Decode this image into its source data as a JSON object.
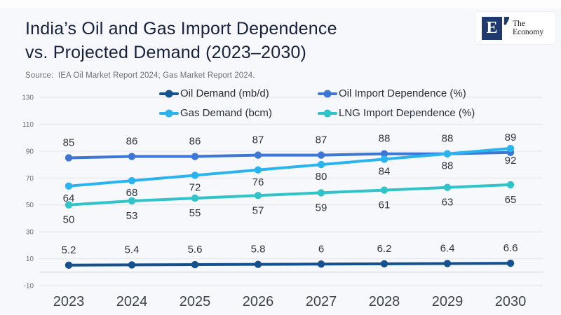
{
  "header": {
    "title_line1": "India’s Oil and Gas Import Dependence",
    "title_line2": "vs. Projected Demand (2023–2030)",
    "source": "Source:  IEA Oil Market Report 2024; Gas Market Report 2024."
  },
  "logo": {
    "letter": "E",
    "name_line1": "The",
    "name_line2": "Economy",
    "brand_color": "#1f3a6e"
  },
  "chart_data": {
    "type": "line",
    "title": "India’s Oil and Gas Import Dependence vs. Projected Demand (2023–2030)",
    "x": [
      2023,
      2024,
      2025,
      2026,
      2027,
      2028,
      2029,
      2030
    ],
    "series": [
      {
        "name": "Oil Demand (mb/d)",
        "color": "#15518e",
        "values": [
          5.2,
          5.4,
          5.6,
          5.8,
          6,
          6.2,
          6.4,
          6.6
        ],
        "label_dy": -17
      },
      {
        "name": "Oil Import Dependence (%)",
        "color": "#3d76d4",
        "values": [
          85,
          86,
          86,
          87,
          87,
          88,
          88,
          89
        ],
        "label_dy": -17
      },
      {
        "name": "Gas Demand (bcm)",
        "color": "#2ab4ef",
        "values": [
          64,
          68,
          72,
          76,
          80,
          84,
          88,
          92
        ],
        "label_dy": 22
      },
      {
        "name": "LNG Import Dependence (%)",
        "color": "#2fc4c9",
        "values": [
          50,
          53,
          55,
          57,
          59,
          61,
          63,
          65
        ],
        "label_dy": 26
      }
    ],
    "xlabel": "",
    "ylabel": "",
    "ylim": [
      -10,
      130
    ],
    "ytick_step": 20,
    "grid": true,
    "zero_line": true,
    "legend_position": "top-center",
    "data_labels": true
  },
  "style": {
    "background": "#f7f8fb",
    "gridline_color": "#e3e4ea",
    "zero_line_color": "#d8d9df",
    "data_label_color": "#30343e",
    "x_label_color": "#3d4450",
    "y_label_color": "#6a6d75"
  }
}
